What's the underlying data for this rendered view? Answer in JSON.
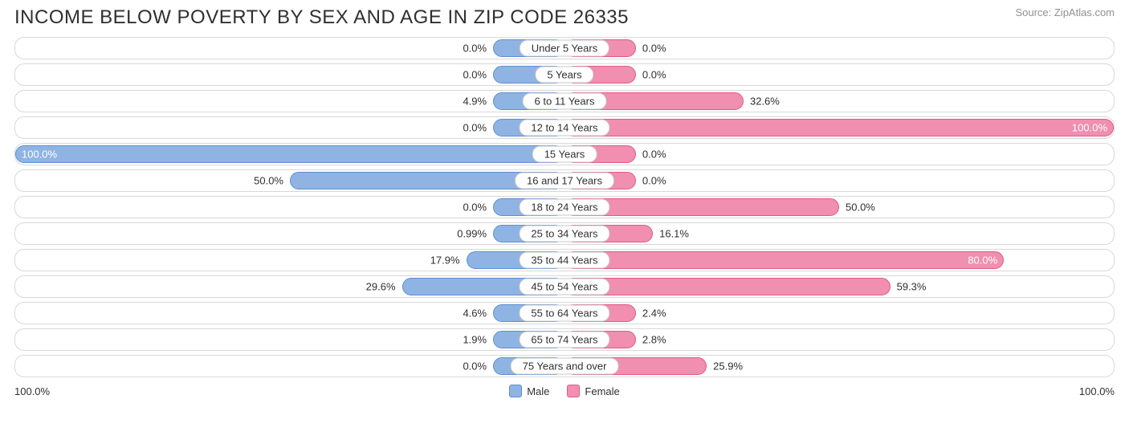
{
  "title": "INCOME BELOW POVERTY BY SEX AND AGE IN ZIP CODE 26335",
  "source": "Source: ZipAtlas.com",
  "chart": {
    "type": "diverging-bar",
    "male_fill": "#8fb4e3",
    "male_border": "#5d8fd0",
    "female_fill": "#f08fb0",
    "female_border": "#e05a8a",
    "row_bg": "#ffffff",
    "row_border": "#d8d8d8",
    "text_color": "#303030",
    "inside_text_color": "#ffffff",
    "min_bar_pct": 13,
    "axis_left": "100.0%",
    "axis_right": "100.0%",
    "legend": {
      "male": "Male",
      "female": "Female"
    },
    "rows": [
      {
        "label": "Under 5 Years",
        "male": 0.0,
        "male_txt": "0.0%",
        "female": 0.0,
        "female_txt": "0.0%"
      },
      {
        "label": "5 Years",
        "male": 0.0,
        "male_txt": "0.0%",
        "female": 0.0,
        "female_txt": "0.0%"
      },
      {
        "label": "6 to 11 Years",
        "male": 4.9,
        "male_txt": "4.9%",
        "female": 32.6,
        "female_txt": "32.6%"
      },
      {
        "label": "12 to 14 Years",
        "male": 0.0,
        "male_txt": "0.0%",
        "female": 100.0,
        "female_txt": "100.0%"
      },
      {
        "label": "15 Years",
        "male": 100.0,
        "male_txt": "100.0%",
        "female": 0.0,
        "female_txt": "0.0%"
      },
      {
        "label": "16 and 17 Years",
        "male": 50.0,
        "male_txt": "50.0%",
        "female": 0.0,
        "female_txt": "0.0%"
      },
      {
        "label": "18 to 24 Years",
        "male": 0.0,
        "male_txt": "0.0%",
        "female": 50.0,
        "female_txt": "50.0%"
      },
      {
        "label": "25 to 34 Years",
        "male": 0.99,
        "male_txt": "0.99%",
        "female": 16.1,
        "female_txt": "16.1%"
      },
      {
        "label": "35 to 44 Years",
        "male": 17.9,
        "male_txt": "17.9%",
        "female": 80.0,
        "female_txt": "80.0%"
      },
      {
        "label": "45 to 54 Years",
        "male": 29.6,
        "male_txt": "29.6%",
        "female": 59.3,
        "female_txt": "59.3%"
      },
      {
        "label": "55 to 64 Years",
        "male": 4.6,
        "male_txt": "4.6%",
        "female": 2.4,
        "female_txt": "2.4%"
      },
      {
        "label": "65 to 74 Years",
        "male": 1.9,
        "male_txt": "1.9%",
        "female": 2.8,
        "female_txt": "2.8%"
      },
      {
        "label": "75 Years and over",
        "male": 0.0,
        "male_txt": "0.0%",
        "female": 25.9,
        "female_txt": "25.9%"
      }
    ]
  }
}
